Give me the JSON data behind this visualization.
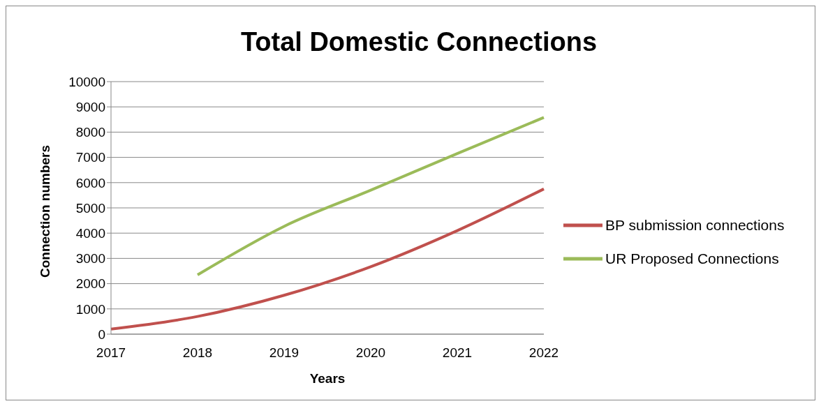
{
  "chart_data": {
    "type": "line",
    "title": "Total Domestic Connections",
    "xlabel": "Years",
    "ylabel": "Connection numbers",
    "categories": [
      "2017",
      "2018",
      "2019",
      "2020",
      "2021",
      "2022"
    ],
    "series": [
      {
        "name": "BP submission connections",
        "color": "#c0504d",
        "values": [
          200,
          700,
          1540,
          2670,
          4100,
          5750
        ]
      },
      {
        "name": "UR Proposed Connections",
        "color": "#9bbb59",
        "values": [
          null,
          2350,
          4270,
          5700,
          7150,
          8580
        ]
      }
    ],
    "ylim": [
      0,
      10000
    ],
    "yticks": [
      0,
      1000,
      2000,
      3000,
      4000,
      5000,
      6000,
      7000,
      8000,
      9000,
      10000
    ],
    "grid": "y",
    "legend": "right",
    "marker": "none",
    "line_style": "solid"
  }
}
